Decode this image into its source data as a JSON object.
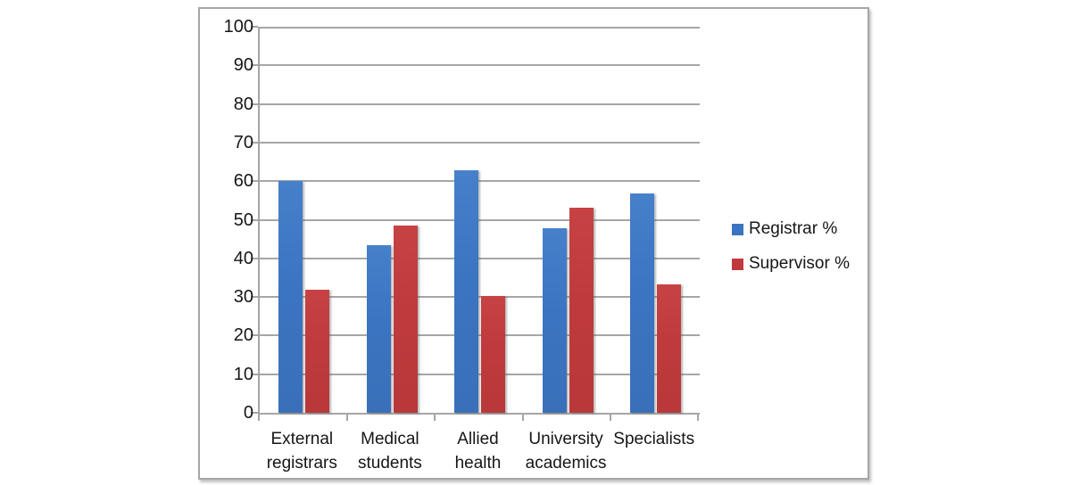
{
  "colors": {
    "frame_border": "#a6a6a6",
    "gridline": "#a6a6a6",
    "text": "#161616",
    "registrar_blue": "#3b74c1",
    "supervisor_red": "#bf3a3c",
    "background": "#ffffff"
  },
  "chart_data": {
    "type": "bar",
    "title": "",
    "categories": [
      "External registrars",
      "Medical students",
      "Allied health",
      "University academics",
      "Specialists"
    ],
    "category_label_lines": [
      [
        "External",
        "registrars"
      ],
      [
        "Medical",
        "students"
      ],
      [
        "Allied",
        "health"
      ],
      [
        "University",
        "academics"
      ],
      [
        "Specialists"
      ]
    ],
    "series": [
      {
        "name": "Registrar %",
        "color": "#3b74c1",
        "values": [
          60.0,
          43.5,
          62.8,
          47.7,
          56.8
        ]
      },
      {
        "name": "Supervisor %",
        "color": "#bf3a3c",
        "values": [
          31.8,
          48.5,
          30.3,
          53.1,
          33.3
        ]
      }
    ],
    "xlabel": "",
    "ylabel": "",
    "ylim": [
      0,
      100
    ],
    "ytick_step": 10,
    "yticks": [
      0,
      10,
      20,
      30,
      40,
      50,
      60,
      70,
      80,
      90,
      100
    ],
    "grid": true,
    "legend_position": "right",
    "legend_entries": [
      "Registrar %",
      "Supervisor %"
    ]
  }
}
